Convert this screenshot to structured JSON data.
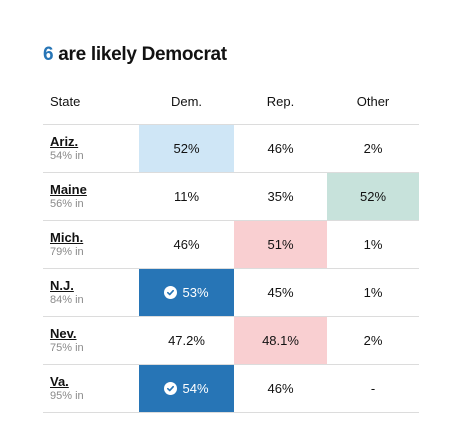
{
  "headline": {
    "count": "6",
    "text": " are likely Democrat"
  },
  "columns": {
    "state": "State",
    "dem": "Dem.",
    "rep": "Rep.",
    "other": "Other"
  },
  "rows": [
    {
      "state": "Ariz.",
      "reporting": "54% in",
      "dem": "52%",
      "rep": "46%",
      "other": "2%"
    },
    {
      "state": "Maine",
      "reporting": "56% in",
      "dem": "11%",
      "rep": "35%",
      "other": "52%"
    },
    {
      "state": "Mich.",
      "reporting": "79% in",
      "dem": "46%",
      "rep": "51%",
      "other": "1%"
    },
    {
      "state": "N.J.",
      "reporting": "84% in",
      "dem": "53%",
      "rep": "45%",
      "other": "1%"
    },
    {
      "state": "Nev.",
      "reporting": "75% in",
      "dem": "47.2%",
      "rep": "48.1%",
      "other": "2%"
    },
    {
      "state": "Va.",
      "reporting": "95% in",
      "dem": "54%",
      "rep": "46%",
      "other": "-"
    }
  ],
  "colors": {
    "accent": "#2775b6",
    "dem_leading": "#cfe6f6",
    "dem_winner": "#2775b6",
    "rep_leading": "#f9cfd1",
    "other_leading": "#c7e2db"
  },
  "icons": {
    "winner": "check-circle-icon"
  }
}
